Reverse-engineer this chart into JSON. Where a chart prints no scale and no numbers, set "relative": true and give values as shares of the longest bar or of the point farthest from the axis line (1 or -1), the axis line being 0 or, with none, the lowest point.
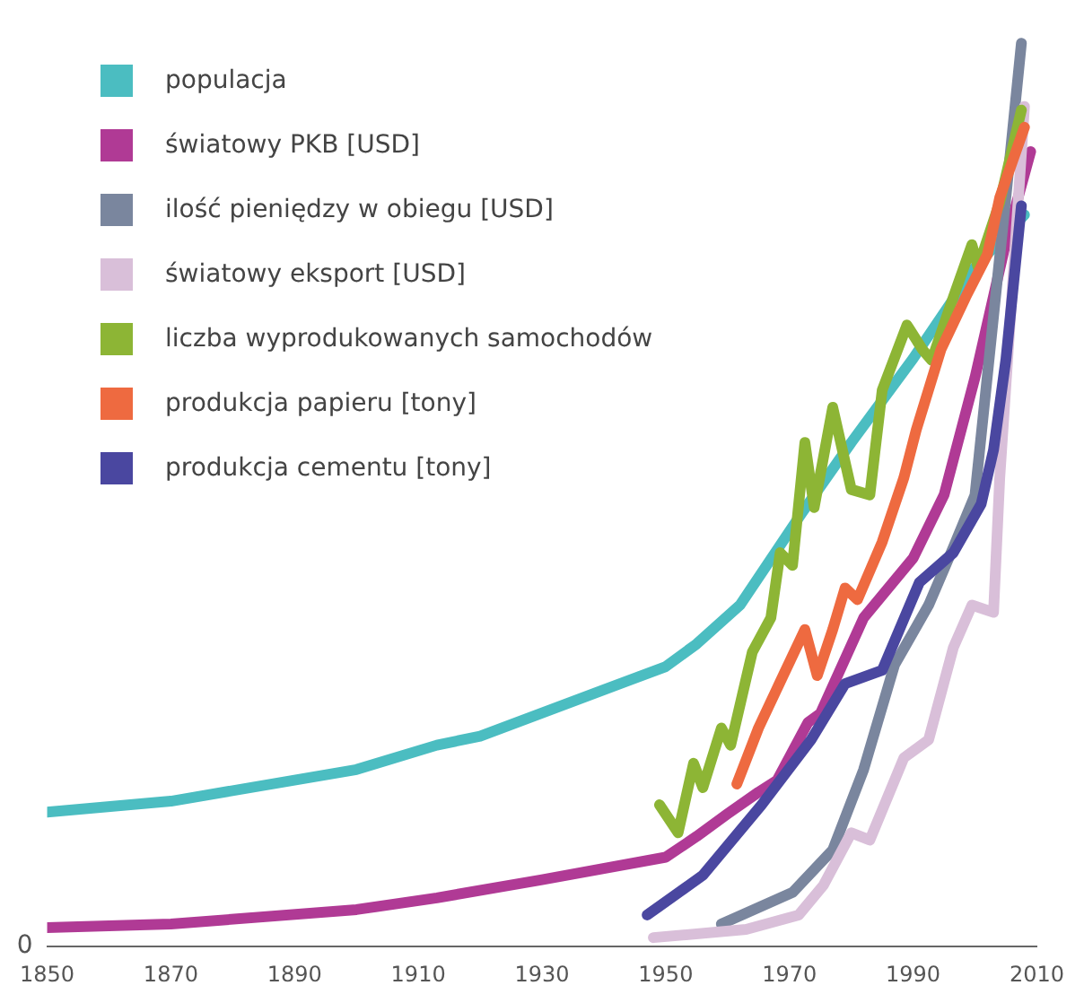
{
  "chart_data": {
    "type": "line",
    "relative": true,
    "xlim": [
      1850,
      2010
    ],
    "xticks": [
      1850,
      1870,
      1890,
      1910,
      1930,
      1950,
      1970,
      1990,
      2010
    ],
    "grid": false,
    "legend": "top left",
    "annotations": [
      "0"
    ],
    "series": [
      {
        "name": "populacja",
        "color": "#4bbdc1",
        "x": [
          1850,
          1870,
          1900,
          1913,
          1920,
          1950,
          1955,
          1962,
          1972,
          1980,
          1990,
          2000,
          2008
        ],
        "values": [
          0.149,
          0.161,
          0.196,
          0.223,
          0.233,
          0.31,
          0.335,
          0.378,
          0.48,
          0.558,
          0.651,
          0.752,
          0.81
        ]
      },
      {
        "name": "światowy PKB [USD]",
        "color": "#b03a95",
        "x": [
          1850,
          1870,
          1900,
          1913,
          1930,
          1950,
          1955,
          1960,
          1965,
          1968,
          1973,
          1975,
          1982,
          1990,
          1995,
          2000,
          2005,
          2009
        ],
        "values": [
          0.021,
          0.025,
          0.041,
          0.054,
          0.074,
          0.099,
          0.122,
          0.147,
          0.171,
          0.184,
          0.248,
          0.258,
          0.364,
          0.43,
          0.5,
          0.63,
          0.78,
          0.88
        ]
      },
      {
        "name": "ilość pieniędzy w obiegu [USD]",
        "color": "#7a869e",
        "x": [
          1959,
          1970.5,
          1977,
          1982,
          1987,
          1992.5,
          1996.5,
          2000,
          2005,
          2007.5
        ],
        "values": [
          0.025,
          0.06,
          0.107,
          0.196,
          0.312,
          0.378,
          0.442,
          0.5,
          0.83,
          1.0
        ]
      },
      {
        "name": "światowy eksport [USD]",
        "color": "#d9bfd9",
        "x": [
          1948,
          1963,
          1971.5,
          1975.5,
          1980,
          1983,
          1988.5,
          1992.5,
          1996.5,
          1999.5,
          2003,
          2004,
          2008
        ],
        "values": [
          0.01,
          0.019,
          0.035,
          0.068,
          0.126,
          0.118,
          0.209,
          0.229,
          0.331,
          0.378,
          0.37,
          0.519,
          0.93
        ]
      },
      {
        "name": "liczba wyprodukowanych samochodów",
        "color": "#8db535",
        "x": [
          1949,
          1952,
          1954.5,
          1956,
          1959,
          1960.5,
          1964,
          1967,
          1968.5,
          1970.5,
          1972.5,
          1974,
          1977,
          1980,
          1983,
          1985,
          1989,
          1991.5,
          1993,
          1996.5,
          1999.5,
          2000.5,
          2004,
          2007.5
        ],
        "values": [
          0.157,
          0.126,
          0.203,
          0.176,
          0.242,
          0.223,
          0.326,
          0.364,
          0.436,
          0.422,
          0.558,
          0.486,
          0.597,
          0.506,
          0.5,
          0.616,
          0.688,
          0.661,
          0.649,
          0.719,
          0.777,
          0.752,
          0.824,
          0.926
        ]
      },
      {
        "name": "produkcja papieru [tony]",
        "color": "#ee6a40",
        "x": [
          1961.5,
          1965,
          1968.5,
          1972.5,
          1974.5,
          1977,
          1979,
          1981,
          1985,
          1988.5,
          1990.5,
          1994.5,
          1998.5,
          2002,
          2004,
          2008
        ],
        "values": [
          0.18,
          0.242,
          0.293,
          0.351,
          0.3,
          0.351,
          0.397,
          0.384,
          0.448,
          0.519,
          0.572,
          0.661,
          0.719,
          0.766,
          0.829,
          0.907
        ]
      },
      {
        "name": "produkcja cementu [tony]",
        "color": "#4a47a0",
        "x": [
          1947,
          1956,
          1965.5,
          1973.5,
          1979,
          1985,
          1991,
          1996.5,
          2001,
          2003,
          2005,
          2007.5
        ],
        "values": [
          0.035,
          0.079,
          0.157,
          0.229,
          0.291,
          0.306,
          0.403,
          0.436,
          0.49,
          0.55,
          0.65,
          0.82
        ]
      }
    ]
  }
}
